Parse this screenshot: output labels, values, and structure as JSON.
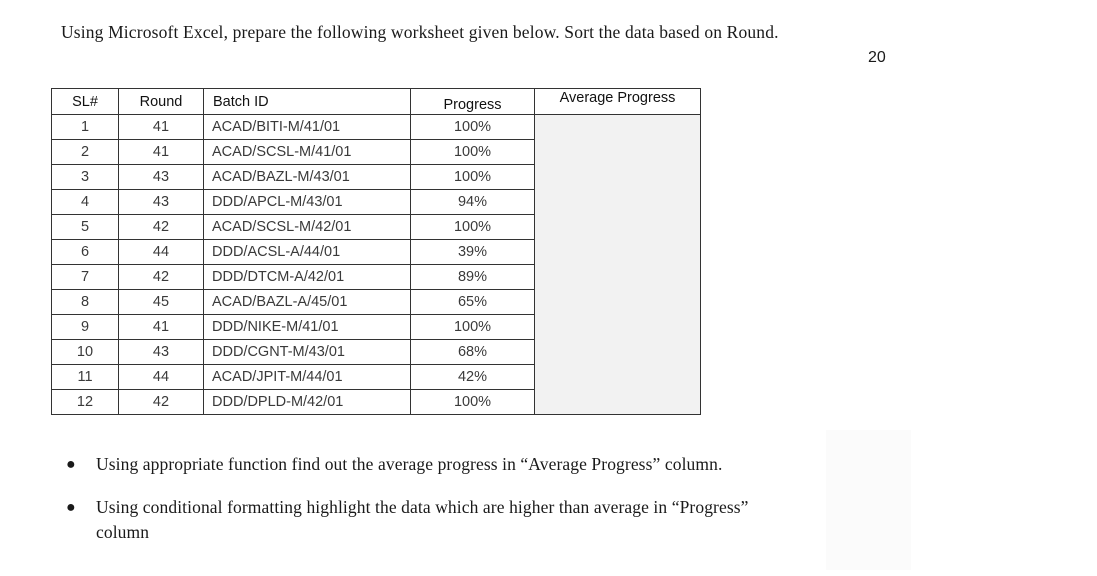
{
  "instructions": {
    "intro": "Using Microsoft Excel, prepare the following worksheet given below. Sort the data based on Round.",
    "marks": "20"
  },
  "table": {
    "headers": {
      "sl": "SL#",
      "round": "Round",
      "batch": "Batch ID",
      "progress": "Progress",
      "avg": "Average Progress"
    },
    "rows": [
      {
        "sl": "1",
        "round": "41",
        "batch": "ACAD/BITI-M/41/01",
        "progress": "100%"
      },
      {
        "sl": "2",
        "round": "41",
        "batch": "ACAD/SCSL-M/41/01",
        "progress": "100%"
      },
      {
        "sl": "3",
        "round": "43",
        "batch": "ACAD/BAZL-M/43/01",
        "progress": "100%"
      },
      {
        "sl": "4",
        "round": "43",
        "batch": "DDD/APCL-M/43/01",
        "progress": "94%"
      },
      {
        "sl": "5",
        "round": "42",
        "batch": "ACAD/SCSL-M/42/01",
        "progress": "100%"
      },
      {
        "sl": "6",
        "round": "44",
        "batch": "DDD/ACSL-A/44/01",
        "progress": "39%"
      },
      {
        "sl": "7",
        "round": "42",
        "batch": "DDD/DTCM-A/42/01",
        "progress": "89%"
      },
      {
        "sl": "8",
        "round": "45",
        "batch": "ACAD/BAZL-A/45/01",
        "progress": "65%"
      },
      {
        "sl": "9",
        "round": "41",
        "batch": "DDD/NIKE-M/41/01",
        "progress": "100%"
      },
      {
        "sl": "10",
        "round": "43",
        "batch": "DDD/CGNT-M/43/01",
        "progress": "68%"
      },
      {
        "sl": "11",
        "round": "44",
        "batch": "ACAD/JPIT-M/44/01",
        "progress": "42%"
      },
      {
        "sl": "12",
        "round": "42",
        "batch": "DDD/DPLD-M/42/01",
        "progress": "100%"
      }
    ]
  },
  "bullets": [
    "Using appropriate function find out the average progress in “Average Progress” column.",
    "Using conditional formatting highlight the data which are higher than average in “Progress” column"
  ],
  "colors": {
    "avg_cell_fill": "#f2f2f2",
    "border": "#333333",
    "text": "#1a1a1a"
  }
}
